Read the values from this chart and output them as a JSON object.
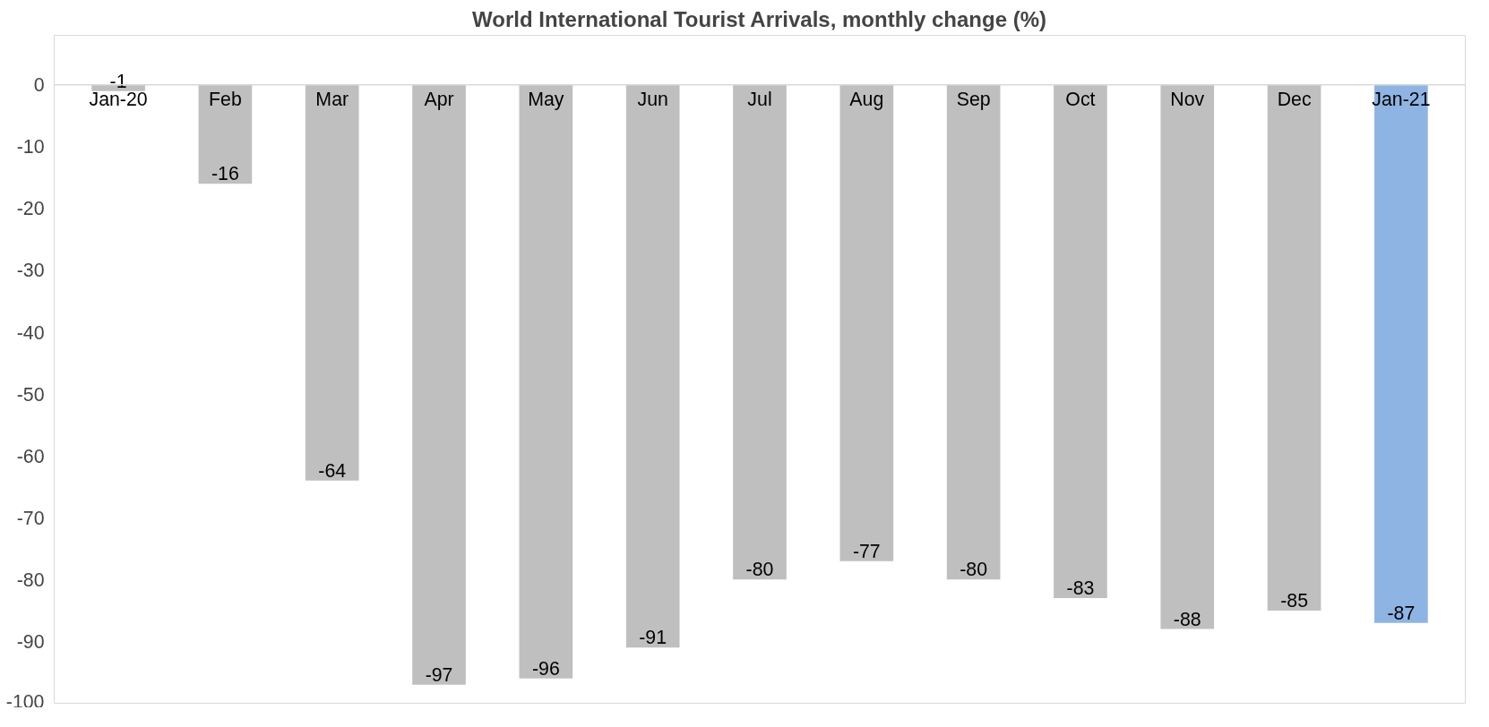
{
  "chart_data": {
    "type": "bar",
    "title": "World International Tourist Arrivals, monthly change (%)",
    "categories": [
      "Jan-20",
      "Feb",
      "Mar",
      "Apr",
      "May",
      "Jun",
      "Jul",
      "Aug",
      "Sep",
      "Oct",
      "Nov",
      "Dec",
      "Jan-21"
    ],
    "values": [
      -1,
      -16,
      -64,
      -97,
      -96,
      -91,
      -80,
      -77,
      -80,
      -83,
      -88,
      -85,
      -87
    ],
    "colors": [
      "#bfbfbf",
      "#bfbfbf",
      "#bfbfbf",
      "#bfbfbf",
      "#bfbfbf",
      "#bfbfbf",
      "#bfbfbf",
      "#bfbfbf",
      "#bfbfbf",
      "#bfbfbf",
      "#bfbfbf",
      "#bfbfbf",
      "#8eb4e3"
    ],
    "ylim": [
      -100,
      8
    ],
    "yticks": [
      -100,
      -90,
      -80,
      -70,
      -60,
      -50,
      -40,
      -30,
      -20,
      -10,
      0
    ],
    "data_labels": true,
    "grid": false
  }
}
